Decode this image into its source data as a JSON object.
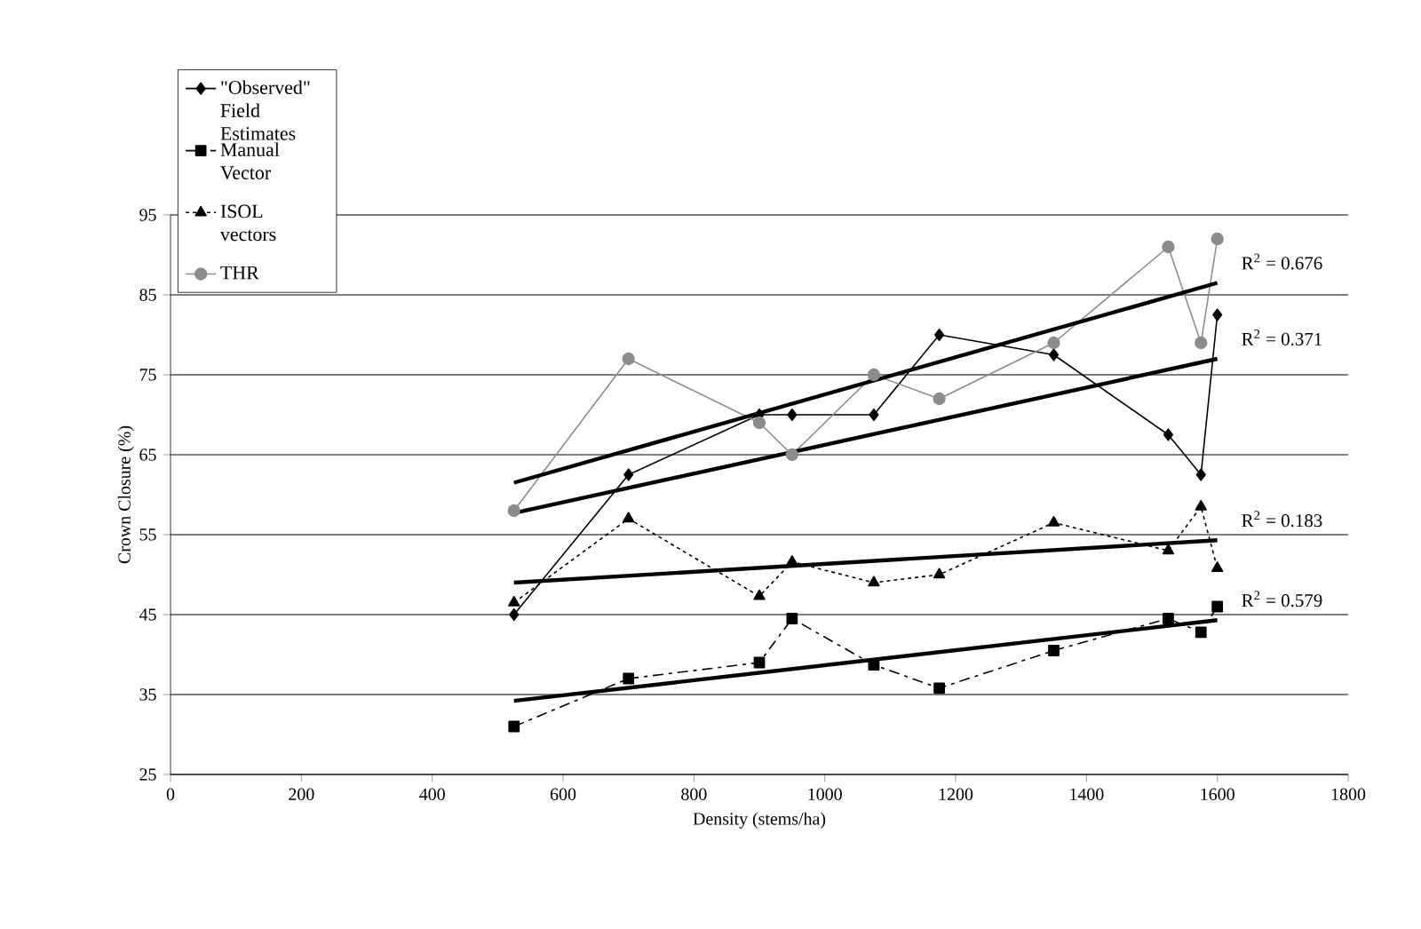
{
  "chart_data": {
    "type": "line",
    "xlabel": "Density (stems/ha)",
    "ylabel": "Crown Closure (%)",
    "xlim": [
      0,
      1800
    ],
    "xticks": [
      0,
      200,
      400,
      600,
      800,
      1000,
      1200,
      1400,
      1600,
      1800
    ],
    "ylim": [
      25,
      95
    ],
    "yticks": [
      25,
      35,
      45,
      55,
      65,
      75,
      85,
      95
    ],
    "grid": "y",
    "legend": "top left",
    "series": [
      {
        "name": "\"Observed\" Field Estimates",
        "color": "#000000",
        "marker": "diamond",
        "line_style": "solid",
        "x": [
          525,
          700,
          900,
          950,
          1075,
          1175,
          1350,
          1525,
          1575,
          1600
        ],
        "values": [
          45,
          62.5,
          70,
          70,
          70,
          80,
          77.5,
          67.5,
          62.5,
          82.5
        ]
      },
      {
        "name": "Manual Vector",
        "color": "#000000",
        "marker": "square",
        "line_style": "dashed",
        "x": [
          525,
          700,
          900,
          950,
          1075,
          1175,
          1350,
          1525,
          1575,
          1600
        ],
        "values": [
          31,
          37,
          39,
          44.5,
          38.7,
          35.8,
          40.5,
          44.5,
          42.8,
          46
        ]
      },
      {
        "name": "ISOL vectors",
        "color": "#000000",
        "marker": "triangle",
        "line_style": "dotted",
        "x": [
          525,
          700,
          900,
          950,
          1075,
          1175,
          1350,
          1525,
          1575,
          1600
        ],
        "values": [
          46.5,
          57,
          47.3,
          51.6,
          49,
          50,
          56.5,
          53,
          58.5,
          50.8
        ]
      },
      {
        "name": "THR",
        "color": "#8c8c8c",
        "marker": "circle",
        "line_style": "solid",
        "x": [
          525,
          700,
          900,
          950,
          1075,
          1175,
          1350,
          1525,
          1575,
          1600
        ],
        "values": [
          58,
          77,
          69,
          65,
          75,
          72,
          79,
          91,
          79,
          92
        ]
      },
      {
        "color": "#000000",
        "marker": "none",
        "line_style": "solid",
        "x": [
          525,
          1600
        ],
        "values": [
          61.5,
          86.5
        ]
      },
      {
        "color": "#000000",
        "marker": "none",
        "line_style": "solid",
        "x": [
          525,
          1600
        ],
        "values": [
          57.7,
          77
        ]
      },
      {
        "color": "#000000",
        "marker": "none",
        "line_style": "solid",
        "x": [
          525,
          1600
        ],
        "values": [
          49,
          54.3
        ]
      },
      {
        "color": "#000000",
        "marker": "none",
        "line_style": "solid",
        "x": [
          525,
          1600
        ],
        "values": [
          34.2,
          44.3
        ]
      }
    ],
    "annotations": [
      "R$^{2}$ = 0.676",
      "R$^{2}$ = 0.371",
      "R$^{2}$ = 0.183",
      "R$^{2}$ = 0.579"
    ]
  }
}
